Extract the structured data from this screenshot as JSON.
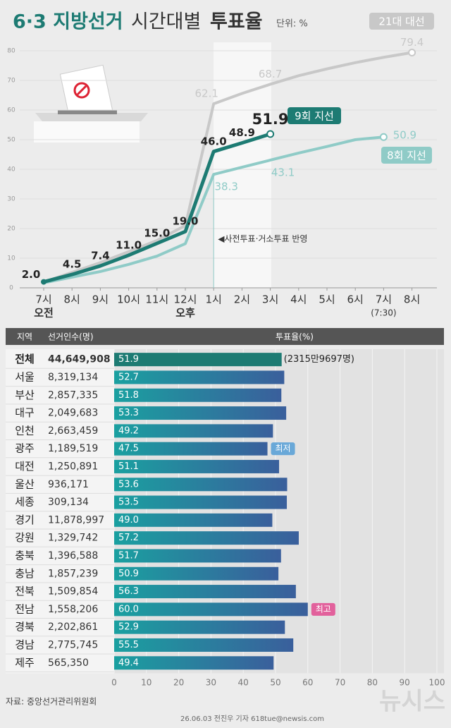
{
  "header": {
    "title_a": "6·3 지방선거",
    "title_b": "시간대별",
    "title_c": "투표율",
    "unit": "단위: %"
  },
  "chart_data": [
    {
      "type": "line",
      "categories": [
        "7시",
        "8시",
        "9시",
        "10시",
        "11시",
        "12시",
        "1시",
        "2시",
        "3시",
        "4시",
        "5시",
        "6시",
        "7시",
        "8시"
      ],
      "sublabels": [
        "오전",
        null,
        null,
        null,
        null,
        "오후",
        null,
        null,
        null,
        null,
        null,
        null,
        "(7:30)",
        null
      ],
      "ylim": [
        0,
        80
      ],
      "yticks": [
        0,
        10,
        20,
        30,
        40,
        50,
        60,
        70,
        80
      ],
      "annotation": "◀사전투표·거소투표 반영",
      "series": [
        {
          "name": "21대 대선",
          "color": "#c8c8c8",
          "values": [
            1.9,
            5.2,
            8.5,
            12.2,
            16.0,
            21.0,
            62.1,
            65.6,
            68.7,
            71.6,
            73.9,
            76.0,
            77.8,
            79.4
          ],
          "value_labels": [
            null,
            null,
            null,
            null,
            null,
            null,
            "62.1",
            null,
            "68.7",
            null,
            null,
            null,
            null,
            "79.4"
          ]
        },
        {
          "name": "8회 지선",
          "color": "#8fcbc7",
          "values": [
            1.7,
            3.6,
            5.5,
            7.9,
            10.7,
            14.9,
            38.3,
            40.7,
            43.1,
            45.5,
            47.7,
            50.0,
            50.9,
            null
          ],
          "value_labels": [
            null,
            null,
            null,
            null,
            null,
            null,
            "38.3",
            null,
            "43.1",
            null,
            null,
            null,
            "50.9",
            null
          ]
        },
        {
          "name": "9회 지선",
          "color": "#1d7b73",
          "values": [
            2.0,
            4.5,
            7.4,
            11.0,
            15.0,
            19.0,
            46.0,
            48.9,
            51.9,
            null,
            null,
            null,
            null,
            null
          ],
          "value_labels": [
            "2.0",
            "4.5",
            "7.4",
            "11.0",
            "15.0",
            "19.0",
            "46.0",
            "48.9",
            "51.9",
            null,
            null,
            null,
            null,
            null
          ]
        }
      ]
    },
    {
      "type": "hbar",
      "header": [
        "지역",
        "선거인수(명)",
        "투표율(%)"
      ],
      "categories": [
        "전체",
        "서울",
        "부산",
        "대구",
        "인천",
        "광주",
        "대전",
        "울산",
        "세종",
        "경기",
        "강원",
        "충북",
        "충남",
        "전북",
        "전남",
        "경북",
        "경남",
        "제주"
      ],
      "voters": [
        "44,649,908",
        "8,319,134",
        "2,857,335",
        "2,049,683",
        "2,663,459",
        "1,189,519",
        "1,250,891",
        "936,171",
        "309,134",
        "11,878,997",
        "1,329,742",
        "1,396,588",
        "1,857,239",
        "1,509,854",
        "1,558,206",
        "2,202,861",
        "2,775,745",
        "565,350"
      ],
      "values": [
        51.9,
        52.7,
        51.8,
        53.3,
        49.2,
        47.5,
        51.1,
        53.6,
        53.5,
        49.0,
        57.2,
        51.7,
        50.9,
        56.3,
        60.0,
        52.9,
        55.5,
        49.4
      ],
      "value_labels": [
        "51.9",
        "52.7",
        "51.8",
        "53.3",
        "49.2",
        "47.5",
        "51.1",
        "53.6",
        "53.5",
        "49.0",
        "57.2",
        "51.7",
        "50.9",
        "56.3",
        "60.0",
        "52.9",
        "55.5",
        "49.4"
      ],
      "row_notes": [
        {
          "text": "(2315만9697명)",
          "color": null
        },
        null,
        null,
        null,
        null,
        {
          "text": "최저",
          "color": "#69a8d8"
        },
        null,
        null,
        null,
        null,
        null,
        null,
        null,
        null,
        {
          "text": "최고",
          "color": "#e2619c"
        },
        null,
        null,
        null
      ],
      "xlim": [
        0,
        100
      ],
      "xticks": [
        0,
        10,
        20,
        30,
        40,
        50,
        60,
        70,
        80,
        90,
        100
      ]
    }
  ],
  "footer": {
    "source": "자료: 중앙선거관리위원회",
    "credit": "26.06.03 전진우 기자 618tue@newsis.com",
    "logo": "뉴시스"
  }
}
